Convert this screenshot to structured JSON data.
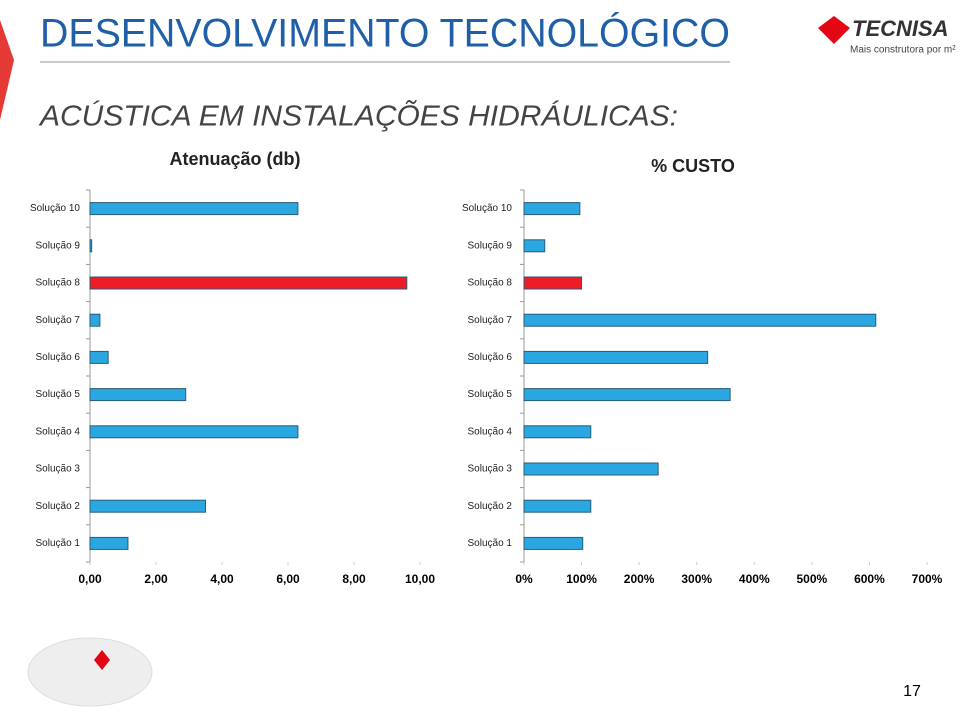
{
  "slide": {
    "title": "DESENVOLVIMENTO TECNOLÓGICO",
    "subtitle": "ACÚSTICA EM INSTALAÇÕES HIDRÁULICAS:",
    "logo": "TECNISA",
    "tagline": "Mais construtora por m²",
    "page_number": "17"
  },
  "chart_data": [
    {
      "type": "bar",
      "orientation": "horizontal",
      "title": "Atenuação (db)",
      "categories": [
        "Solução 1",
        "Solução 2",
        "Solução 3",
        "Solução 4",
        "Solução 5",
        "Solução 6",
        "Solução 7",
        "Solução 8",
        "Solução 9",
        "Solução 10"
      ],
      "values": [
        1.15,
        3.5,
        0,
        6.3,
        2.9,
        0.55,
        0.3,
        9.6,
        0.05,
        6.3
      ],
      "colors": [
        "#2aa6e0",
        "#2aa6e0",
        "#2aa6e0",
        "#2aa6e0",
        "#2aa6e0",
        "#2aa6e0",
        "#2aa6e0",
        "#ee1c25",
        "#2aa6e0",
        "#2aa6e0"
      ],
      "xlim": [
        0,
        10
      ],
      "xticks": [
        {
          "value": 0,
          "label": "0,00"
        },
        {
          "value": 2,
          "label": "2,00"
        },
        {
          "value": 4,
          "label": "4,00"
        },
        {
          "value": 6,
          "label": "6,00"
        },
        {
          "value": 8,
          "label": "8,00"
        },
        {
          "value": 10,
          "label": "10,00"
        }
      ]
    },
    {
      "type": "bar",
      "orientation": "horizontal",
      "title": "% CUSTO",
      "categories": [
        "Solução 1",
        "Solução 2",
        "Solução 3",
        "Solução 4",
        "Solução 5",
        "Solução 6",
        "Solução 7",
        "Solução 8",
        "Solução 9",
        "Solução 10"
      ],
      "values": [
        102,
        116,
        233,
        116,
        358,
        319,
        611,
        100,
        36,
        97
      ],
      "colors": [
        "#2aa6e0",
        "#2aa6e0",
        "#2aa6e0",
        "#2aa6e0",
        "#2aa6e0",
        "#2aa6e0",
        "#2aa6e0",
        "#ee1c25",
        "#2aa6e0",
        "#2aa6e0"
      ],
      "xlim": [
        0,
        700
      ],
      "xticks": [
        {
          "value": 0,
          "label": "0%"
        },
        {
          "value": 100,
          "label": "100%"
        },
        {
          "value": 200,
          "label": "200%"
        },
        {
          "value": 300,
          "label": "300%"
        },
        {
          "value": 400,
          "label": "400%"
        },
        {
          "value": 500,
          "label": "500%"
        },
        {
          "value": 600,
          "label": "600%"
        },
        {
          "value": 700,
          "label": "700%"
        }
      ]
    }
  ]
}
